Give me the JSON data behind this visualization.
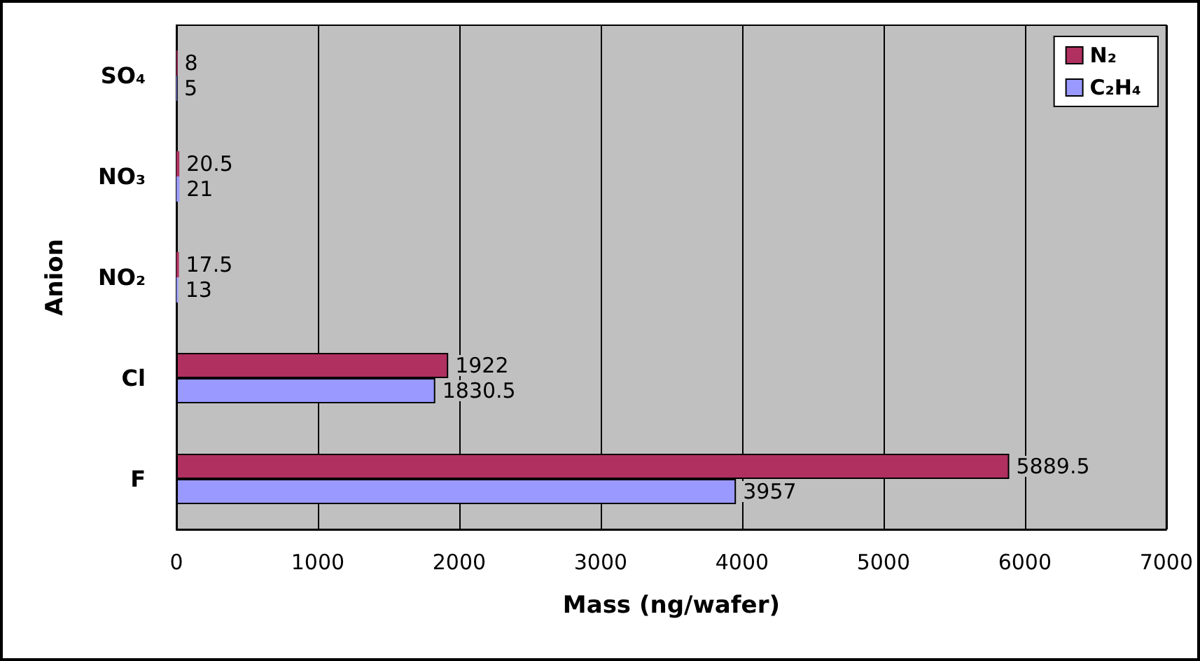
{
  "chart_data": {
    "type": "bar",
    "orientation": "horizontal",
    "xlabel": "Mass (ng/wafer)",
    "ylabel": "Anion",
    "categories": [
      "SO₄",
      "NO₃",
      "NO₂",
      "Cl",
      "F"
    ],
    "series": [
      {
        "name": "N₂",
        "color": "#b03060",
        "values": [
          8,
          20.5,
          17.5,
          1922,
          5889.5
        ]
      },
      {
        "name": "C₂H₄",
        "color": "#9999ff",
        "values": [
          5,
          21,
          13,
          1830.5,
          3957
        ]
      }
    ],
    "xlim": [
      0,
      7000
    ],
    "xticks": [
      0,
      1000,
      2000,
      3000,
      4000,
      5000,
      6000,
      7000
    ],
    "grid": "x",
    "legend": "top right",
    "data_labels": true
  }
}
